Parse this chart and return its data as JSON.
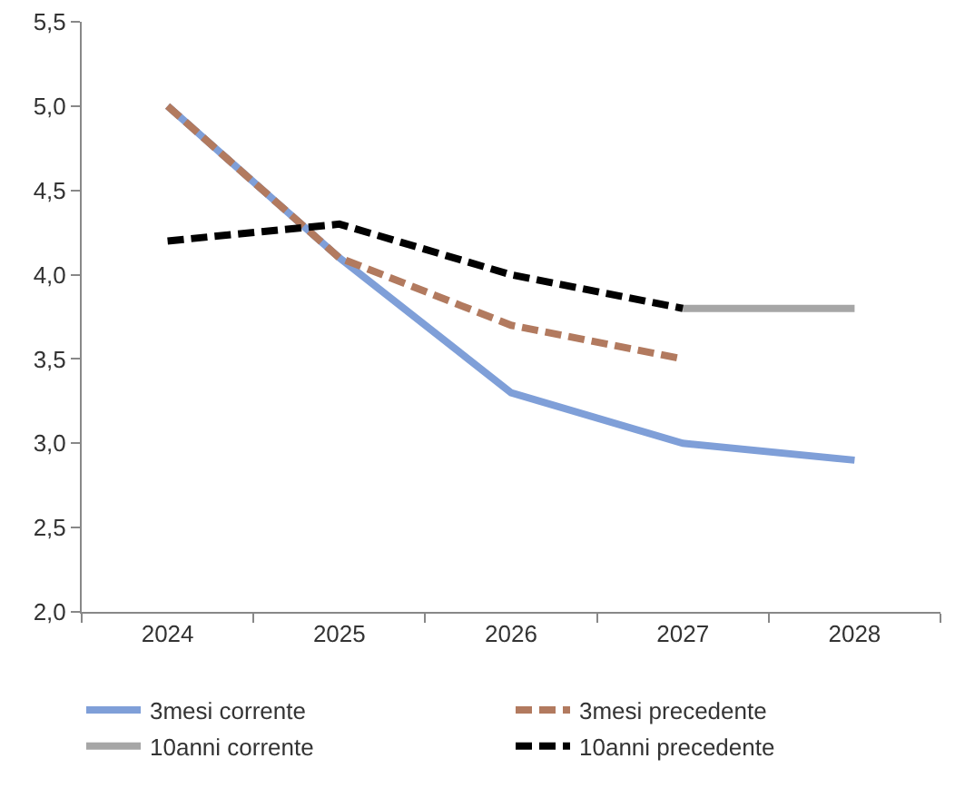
{
  "chart_data": {
    "type": "line",
    "categories": [
      "2024",
      "2025",
      "2026",
      "2027",
      "2028"
    ],
    "series": [
      {
        "name": "3mesi corrente",
        "color": "#7f9fd8",
        "line_style": "solid",
        "values": [
          5.0,
          4.1,
          3.3,
          3.0,
          2.9
        ]
      },
      {
        "name": "3mesi precedente",
        "color": "#b27a5f",
        "line_style": "dashed",
        "values": [
          5.0,
          4.1,
          3.7,
          3.5,
          null
        ]
      },
      {
        "name": "10anni corrente",
        "color": "#a6a6a6",
        "line_style": "solid",
        "values": [
          null,
          null,
          null,
          3.8,
          3.8
        ]
      },
      {
        "name": "10anni precedente",
        "color": "#000000",
        "line_style": "dashed",
        "values": [
          4.2,
          4.3,
          4.0,
          3.8,
          null
        ]
      }
    ],
    "ylim": [
      2.0,
      5.5
    ],
    "yticks": [
      {
        "value": 2.0,
        "label": "2,0"
      },
      {
        "value": 2.5,
        "label": "2,5"
      },
      {
        "value": 3.0,
        "label": "3,0"
      },
      {
        "value": 3.5,
        "label": "3,5"
      },
      {
        "value": 4.0,
        "label": "4,0"
      },
      {
        "value": 4.5,
        "label": "4,5"
      },
      {
        "value": 5.0,
        "label": "5,0"
      },
      {
        "value": 5.5,
        "label": "5,5"
      }
    ],
    "legend": "bottom"
  }
}
